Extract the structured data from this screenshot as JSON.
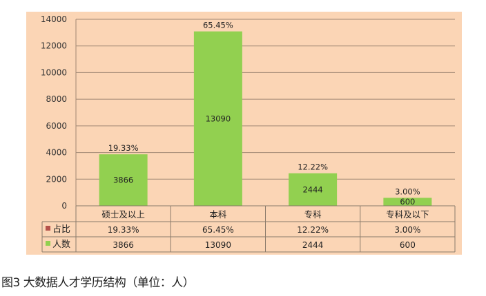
{
  "chart_data": {
    "type": "bar",
    "categories": [
      "硕士及以上",
      "本科",
      "专科",
      "专科及以下"
    ],
    "series": [
      {
        "name": "占比",
        "values": [
          "19.33%",
          "65.45%",
          "12.22%",
          "3.00%"
        ],
        "color": "#b5524a"
      },
      {
        "name": "人数",
        "values": [
          3866,
          13090,
          2444,
          600
        ],
        "color": "#92d050"
      }
    ],
    "yticks": [
      "0",
      "2000",
      "4000",
      "6000",
      "8000",
      "10000",
      "12000",
      "14000"
    ],
    "ylim": [
      0,
      14000
    ],
    "grid": true,
    "data_table": true,
    "background": "#fbd5b5"
  },
  "caption": "图3 大数据人才学历结构（单位：人）"
}
